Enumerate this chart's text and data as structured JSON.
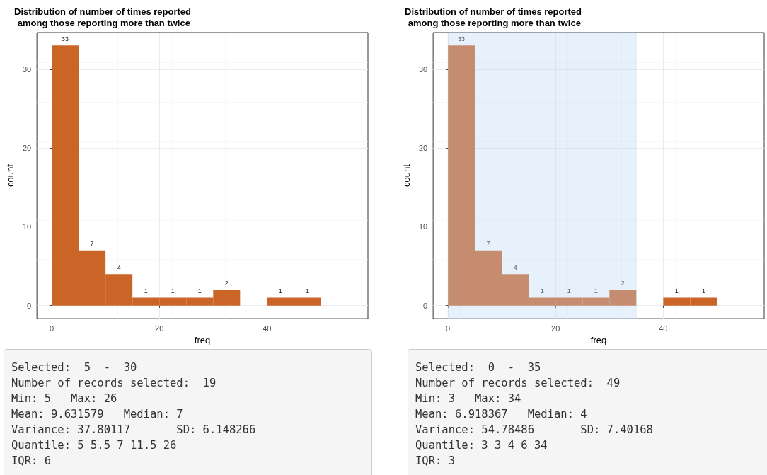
{
  "chart_data": [
    {
      "type": "histogram",
      "title": "Distribution of number of times reported\n among those reporting more than twice",
      "xlabel": "freq",
      "ylabel": "count",
      "bins": [
        0,
        5,
        10,
        15,
        20,
        25,
        30,
        35,
        40,
        45,
        50
      ],
      "values": [
        33,
        7,
        4,
        1,
        1,
        1,
        2,
        null,
        1,
        1
      ],
      "color": "#cb6427",
      "data_labels": true,
      "xlim": [
        -2.75,
        58.75
      ],
      "xticks": [
        0,
        20,
        40
      ],
      "ylim": [
        -1.65,
        34.65
      ],
      "yticks": [
        0,
        10,
        20,
        30
      ],
      "grid": true
    },
    {
      "type": "histogram",
      "title": "Distribution of number of times reported\n among those reporting more than twice",
      "xlabel": "freq",
      "ylabel": "count",
      "bins": [
        0,
        5,
        10,
        15,
        20,
        25,
        30,
        35,
        40,
        45,
        50
      ],
      "values": [
        33,
        7,
        4,
        1,
        1,
        1,
        2,
        null,
        1,
        1
      ],
      "color": "#cb6427",
      "data_labels": true,
      "xlim": [
        -2.75,
        58.75
      ],
      "xticks": [
        0,
        20,
        40
      ],
      "ylim": [
        -1.65,
        34.65
      ],
      "yticks": [
        0,
        10,
        20,
        30
      ],
      "grid": true,
      "bands": [
        {
          "axis": "x",
          "from": 0,
          "to": 35,
          "color": "#b9d8f7"
        }
      ]
    },
    {
      "type": "other",
      "annotations": [
        "Selected:  5  -  30",
        "Number of records selected:  19",
        "Min: 5   Max: 26",
        "Mean: 9.631579   Median: 7",
        "Variance: 37.80117       SD: 6.148266",
        "Quantile: 5 5.5 7 11.5 26",
        "IQR: 6"
      ]
    },
    {
      "type": "other",
      "annotations": [
        "Selected:  0  -  35",
        "Number of records selected:  49",
        "Min: 3   Max: 34",
        "Mean: 6.918367   Median: 4",
        "Variance: 54.78486       SD: 7.40168",
        "Quantile: 3 3 4 6 34",
        "IQR: 3"
      ]
    }
  ]
}
